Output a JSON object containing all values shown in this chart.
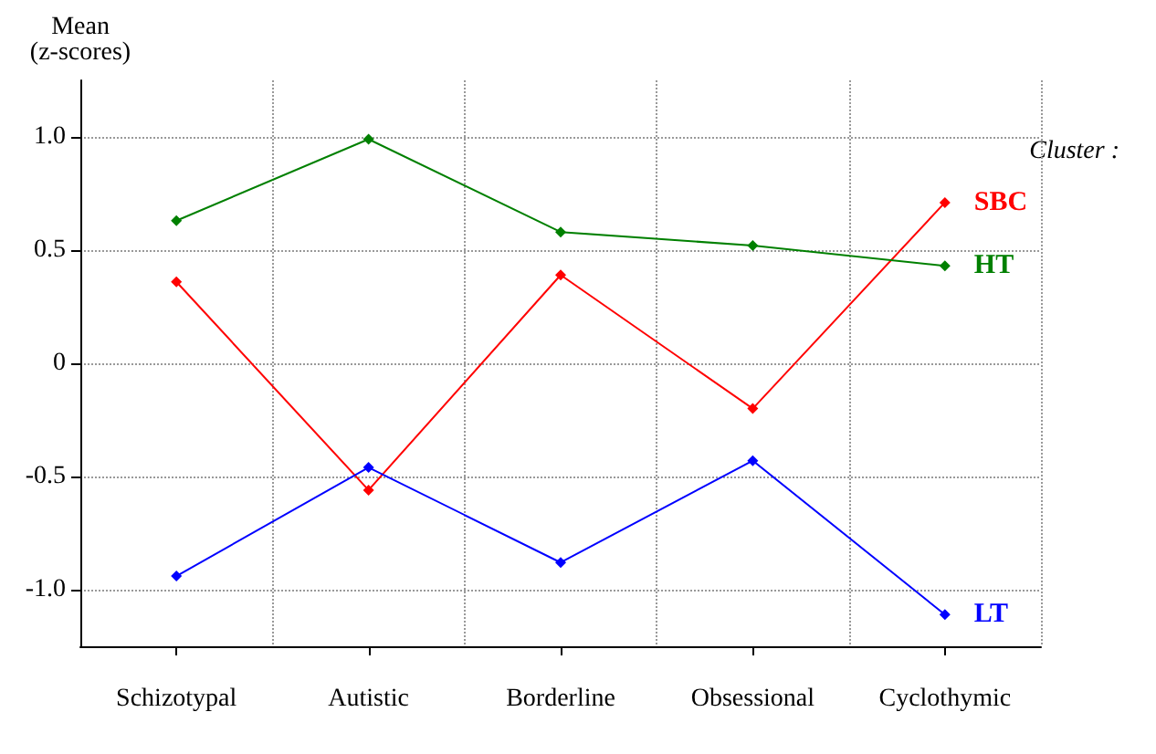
{
  "chart_data": {
    "type": "line",
    "ylabel": "Mean\n(z-scores)",
    "legend_title": "Cluster :",
    "categories": [
      "Schizotypal",
      "Autistic",
      "Borderline",
      "Obsessional",
      "Cyclothymic"
    ],
    "series": [
      {
        "name": "SBC",
        "color": "#ff0000",
        "values": [
          0.36,
          -0.56,
          0.39,
          -0.2,
          0.71
        ]
      },
      {
        "name": "HT",
        "color": "#008000",
        "values": [
          0.63,
          0.99,
          0.58,
          0.52,
          0.43
        ]
      },
      {
        "name": "LT",
        "color": "#0000ff",
        "values": [
          -0.94,
          -0.46,
          -0.88,
          -0.43,
          -1.11
        ]
      }
    ],
    "ylim": [
      -1.25,
      1.25
    ],
    "yticks": [
      {
        "value": -1,
        "label": "-1.0"
      },
      {
        "value": -0.5,
        "label": "-0.5"
      },
      0,
      {
        "value": 0.5,
        "label": "0.5"
      },
      {
        "value": 1,
        "label": "1.0"
      }
    ],
    "grid": true,
    "marker": "diamond",
    "line_style": "solid"
  }
}
